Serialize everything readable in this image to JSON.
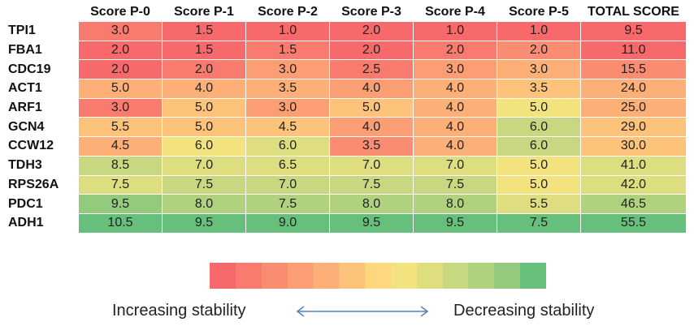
{
  "table": {
    "columns": [
      "Score P-0",
      "Score P-1",
      "Score P-2",
      "Score P-3",
      "Score P-4",
      "Score P-5",
      "TOTAL SCORE"
    ],
    "rows": [
      {
        "label": "TPI1",
        "cells": [
          "3.0",
          "1.5",
          "1.0",
          "2.0",
          "1.0",
          "1.0",
          "9.5"
        ]
      },
      {
        "label": "FBA1",
        "cells": [
          "2.0",
          "1.5",
          "1.5",
          "2.0",
          "2.0",
          "2.0",
          "11.0"
        ]
      },
      {
        "label": "CDC19",
        "cells": [
          "2.0",
          "2.0",
          "3.0",
          "2.5",
          "3.0",
          "3.0",
          "15.5"
        ]
      },
      {
        "label": "ACT1",
        "cells": [
          "5.0",
          "4.0",
          "3.5",
          "4.0",
          "4.0",
          "3.5",
          "24.0"
        ]
      },
      {
        "label": "ARF1",
        "cells": [
          "3.0",
          "5.0",
          "3.0",
          "5.0",
          "4.0",
          "5.0",
          "25.0"
        ]
      },
      {
        "label": "GCN4",
        "cells": [
          "5.5",
          "5.0",
          "4.5",
          "4.0",
          "4.0",
          "6.0",
          "29.0"
        ]
      },
      {
        "label": "CCW12",
        "cells": [
          "4.5",
          "6.0",
          "6.0",
          "3.5",
          "4.0",
          "6.0",
          "30.0"
        ]
      },
      {
        "label": "TDH3",
        "cells": [
          "8.5",
          "7.0",
          "6.5",
          "7.0",
          "7.0",
          "5.0",
          "41.0"
        ]
      },
      {
        "label": "RPS26A",
        "cells": [
          "7.5",
          "7.5",
          "7.0",
          "7.5",
          "7.5",
          "5.0",
          "42.0"
        ]
      },
      {
        "label": "PDC1",
        "cells": [
          "9.5",
          "8.0",
          "7.5",
          "8.0",
          "8.0",
          "5.5",
          "46.5"
        ]
      },
      {
        "label": "ADH1",
        "cells": [
          "10.5",
          "9.5",
          "9.0",
          "9.5",
          "9.5",
          "7.5",
          "55.5"
        ]
      }
    ],
    "colorbar": [
      "#f8696b",
      "#f97a6e",
      "#fa8c71",
      "#fb9e74",
      "#fcb077",
      "#fdc37b",
      "#fed77f",
      "#f2e37f",
      "#dedd80",
      "#c8d880",
      "#b0d27f",
      "#94ca7d",
      "#66bf7b"
    ]
  },
  "legend": {
    "left": "Increasing stability",
    "right": "Decreasing stability"
  }
}
